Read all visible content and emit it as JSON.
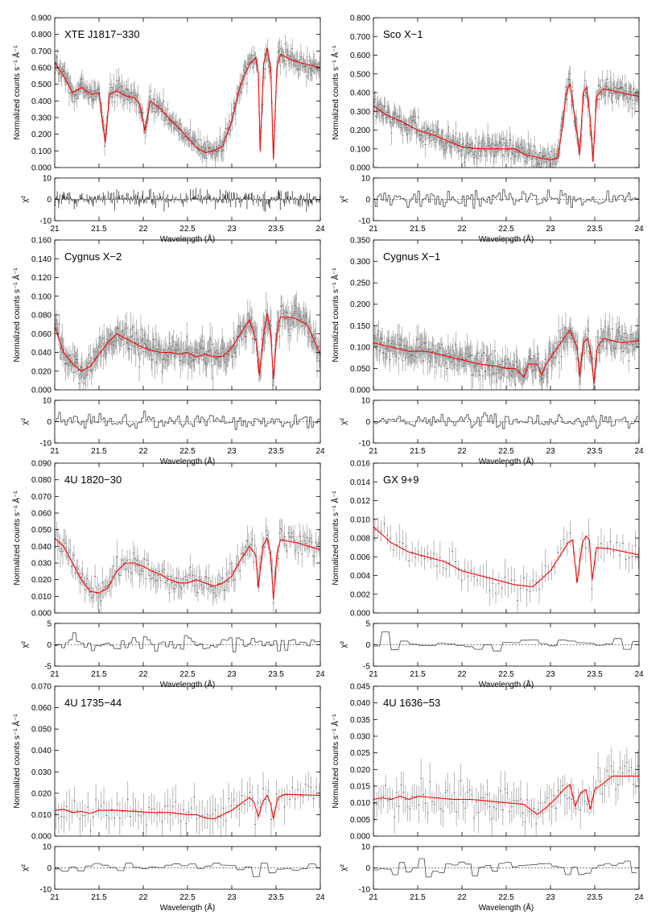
{
  "figure": {
    "y_label": "Normalized counts s⁻¹ Å⁻¹",
    "resid_label": "χ²",
    "x_label": "Wavelength (Å)",
    "colors": {
      "model": "#ff0000",
      "data": "#555555",
      "axis": "#000000",
      "error": "#9a9a9a"
    }
  },
  "chart_data": [
    {
      "type": "line",
      "title": "XTE J1817−330",
      "xlabel": "Wavelength (Å)",
      "ylabel": "Normalized counts s⁻¹ Å⁻¹",
      "xlim": [
        21,
        24
      ],
      "ylim": [
        0,
        0.9
      ],
      "y_ticks": [
        "0.000",
        "0.100",
        "0.200",
        "0.300",
        "0.400",
        "0.500",
        "0.600",
        "0.700",
        "0.800",
        "0.900"
      ],
      "x_ticks": [
        "21",
        "21.5",
        "22",
        "22.5",
        "23",
        "23.5",
        "24"
      ],
      "resid_ylim": [
        -10,
        10
      ],
      "resid_ticks": [
        "-10",
        "0",
        "10"
      ],
      "model": [
        [
          21.0,
          0.63
        ],
        [
          21.1,
          0.55
        ],
        [
          21.2,
          0.45
        ],
        [
          21.3,
          0.48
        ],
        [
          21.42,
          0.44
        ],
        [
          21.5,
          0.45
        ],
        [
          21.57,
          0.15
        ],
        [
          21.62,
          0.44
        ],
        [
          21.7,
          0.46
        ],
        [
          21.8,
          0.43
        ],
        [
          21.9,
          0.42
        ],
        [
          21.96,
          0.38
        ],
        [
          22.02,
          0.22
        ],
        [
          22.08,
          0.4
        ],
        [
          22.2,
          0.35
        ],
        [
          22.3,
          0.29
        ],
        [
          22.4,
          0.24
        ],
        [
          22.5,
          0.18
        ],
        [
          22.6,
          0.12
        ],
        [
          22.7,
          0.09
        ],
        [
          22.8,
          0.1
        ],
        [
          22.9,
          0.13
        ],
        [
          23.0,
          0.28
        ],
        [
          23.1,
          0.5
        ],
        [
          23.2,
          0.62
        ],
        [
          23.27,
          0.66
        ],
        [
          23.3,
          0.57
        ],
        [
          23.32,
          0.1
        ],
        [
          23.36,
          0.62
        ],
        [
          23.4,
          0.72
        ],
        [
          23.44,
          0.6
        ],
        [
          23.47,
          0.05
        ],
        [
          23.51,
          0.6
        ],
        [
          23.55,
          0.68
        ],
        [
          23.7,
          0.64
        ],
        [
          23.85,
          0.62
        ],
        [
          24.0,
          0.6
        ]
      ],
      "data_noise": 0.05,
      "data_step": 0.008,
      "resid_scale": 3.5,
      "resid_style": "lines"
    },
    {
      "type": "line",
      "title": "Sco X−1",
      "xlabel": "Wavelength (Å)",
      "ylabel": "Normalized counts s⁻¹ Å⁻¹",
      "xlim": [
        21,
        24
      ],
      "ylim": [
        0,
        0.8
      ],
      "y_ticks": [
        "0.000",
        "0.100",
        "0.200",
        "0.300",
        "0.400",
        "0.500",
        "0.600",
        "0.700",
        "0.800"
      ],
      "x_ticks": [
        "21",
        "21.5",
        "22",
        "22.5",
        "23",
        "23.5",
        "24"
      ],
      "resid_ylim": [
        -10,
        10
      ],
      "resid_ticks": [
        "-10",
        "0",
        "10"
      ],
      "model": [
        [
          21.0,
          0.33
        ],
        [
          21.15,
          0.28
        ],
        [
          21.3,
          0.25
        ],
        [
          21.5,
          0.2
        ],
        [
          21.7,
          0.17
        ],
        [
          21.9,
          0.13
        ],
        [
          22.0,
          0.11
        ],
        [
          22.2,
          0.1
        ],
        [
          22.4,
          0.1
        ],
        [
          22.6,
          0.1
        ],
        [
          22.7,
          0.07
        ],
        [
          22.8,
          0.06
        ],
        [
          22.9,
          0.05
        ],
        [
          23.0,
          0.04
        ],
        [
          23.08,
          0.05
        ],
        [
          23.13,
          0.2
        ],
        [
          23.18,
          0.4
        ],
        [
          23.22,
          0.45
        ],
        [
          23.28,
          0.25
        ],
        [
          23.33,
          0.07
        ],
        [
          23.37,
          0.4
        ],
        [
          23.41,
          0.43
        ],
        [
          23.45,
          0.25
        ],
        [
          23.48,
          0.03
        ],
        [
          23.52,
          0.38
        ],
        [
          23.6,
          0.42
        ],
        [
          23.8,
          0.4
        ],
        [
          24.0,
          0.38
        ]
      ],
      "data_noise": 0.045,
      "data_step": 0.008,
      "resid_scale": 3,
      "resid_style": "steps"
    },
    {
      "type": "line",
      "title": "Cygnus X−2",
      "xlabel": "Wavelength (Å)",
      "ylabel": "Normalized counts s⁻¹ Å⁻¹",
      "xlim": [
        21,
        24
      ],
      "ylim": [
        0,
        0.16
      ],
      "y_ticks": [
        "0.000",
        "0.020",
        "0.040",
        "0.060",
        "0.080",
        "0.100",
        "0.120",
        "0.140",
        "0.160"
      ],
      "x_ticks": [
        "21",
        "21.5",
        "22",
        "22.5",
        "23",
        "23.5",
        "24"
      ],
      "resid_ylim": [
        -10,
        10
      ],
      "resid_ticks": [
        "-10",
        "0",
        "10"
      ],
      "model": [
        [
          21.0,
          0.068
        ],
        [
          21.1,
          0.04
        ],
        [
          21.2,
          0.028
        ],
        [
          21.3,
          0.02
        ],
        [
          21.4,
          0.025
        ],
        [
          21.5,
          0.038
        ],
        [
          21.6,
          0.05
        ],
        [
          21.7,
          0.06
        ],
        [
          21.8,
          0.055
        ],
        [
          21.9,
          0.05
        ],
        [
          22.0,
          0.045
        ],
        [
          22.1,
          0.042
        ],
        [
          22.2,
          0.04
        ],
        [
          22.3,
          0.04
        ],
        [
          22.4,
          0.038
        ],
        [
          22.5,
          0.04
        ],
        [
          22.6,
          0.035
        ],
        [
          22.7,
          0.038
        ],
        [
          22.8,
          0.035
        ],
        [
          22.9,
          0.036
        ],
        [
          23.0,
          0.045
        ],
        [
          23.1,
          0.06
        ],
        [
          23.2,
          0.075
        ],
        [
          23.28,
          0.05
        ],
        [
          23.31,
          0.015
        ],
        [
          23.36,
          0.06
        ],
        [
          23.4,
          0.082
        ],
        [
          23.44,
          0.06
        ],
        [
          23.47,
          0.012
        ],
        [
          23.51,
          0.06
        ],
        [
          23.55,
          0.078
        ],
        [
          23.7,
          0.077
        ],
        [
          23.85,
          0.07
        ],
        [
          24.0,
          0.038
        ]
      ],
      "data_noise": 0.012,
      "data_step": 0.008,
      "resid_scale": 2.5,
      "resid_style": "steps"
    },
    {
      "type": "line",
      "title": "Cygnus X−1",
      "xlabel": "Wavelength (Å)",
      "ylabel": "Normalized counts s⁻¹ Å⁻¹",
      "xlim": [
        21,
        24
      ],
      "ylim": [
        0,
        0.35
      ],
      "y_ticks": [
        "0.000",
        "0.050",
        "0.100",
        "0.150",
        "0.200",
        "0.250",
        "0.300",
        "0.350"
      ],
      "x_ticks": [
        "21",
        "21.5",
        "22",
        "22.5",
        "23",
        "23.5",
        "24"
      ],
      "resid_ylim": [
        -10,
        10
      ],
      "resid_ticks": [
        "-10",
        "0",
        "10"
      ],
      "model": [
        [
          21.0,
          0.11
        ],
        [
          21.2,
          0.1
        ],
        [
          21.4,
          0.09
        ],
        [
          21.6,
          0.09
        ],
        [
          21.8,
          0.08
        ],
        [
          22.0,
          0.07
        ],
        [
          22.2,
          0.06
        ],
        [
          22.4,
          0.055
        ],
        [
          22.5,
          0.05
        ],
        [
          22.6,
          0.05
        ],
        [
          22.7,
          0.03
        ],
        [
          22.75,
          0.06
        ],
        [
          22.85,
          0.06
        ],
        [
          22.9,
          0.035
        ],
        [
          22.95,
          0.06
        ],
        [
          23.05,
          0.09
        ],
        [
          23.15,
          0.12
        ],
        [
          23.22,
          0.14
        ],
        [
          23.3,
          0.1
        ],
        [
          23.33,
          0.03
        ],
        [
          23.37,
          0.11
        ],
        [
          23.42,
          0.12
        ],
        [
          23.46,
          0.08
        ],
        [
          23.49,
          0.015
        ],
        [
          23.53,
          0.1
        ],
        [
          23.6,
          0.12
        ],
        [
          23.8,
          0.11
        ],
        [
          24.0,
          0.115
        ]
      ],
      "data_noise": 0.025,
      "data_step": 0.008,
      "resid_scale": 2.5,
      "resid_style": "steps"
    },
    {
      "type": "line",
      "title": "4U 1820−30",
      "xlabel": "Wavelength (Å)",
      "ylabel": "Normalized counts s⁻¹ Å⁻¹",
      "xlim": [
        21,
        24
      ],
      "ylim": [
        0,
        0.09
      ],
      "y_ticks": [
        "0.000",
        "0.010",
        "0.020",
        "0.030",
        "0.040",
        "0.050",
        "0.060",
        "0.070",
        "0.080",
        "0.090"
      ],
      "x_ticks": [
        "21",
        "21.5",
        "22",
        "22.5",
        "23",
        "23.5",
        "24"
      ],
      "resid_ylim": [
        -5,
        5
      ],
      "resid_ticks": [
        "-5",
        "0",
        "5"
      ],
      "model": [
        [
          21.0,
          0.045
        ],
        [
          21.1,
          0.04
        ],
        [
          21.2,
          0.03
        ],
        [
          21.3,
          0.02
        ],
        [
          21.4,
          0.013
        ],
        [
          21.5,
          0.012
        ],
        [
          21.6,
          0.015
        ],
        [
          21.7,
          0.025
        ],
        [
          21.8,
          0.03
        ],
        [
          21.9,
          0.03
        ],
        [
          22.0,
          0.028
        ],
        [
          22.1,
          0.025
        ],
        [
          22.2,
          0.023
        ],
        [
          22.3,
          0.02
        ],
        [
          22.4,
          0.018
        ],
        [
          22.5,
          0.018
        ],
        [
          22.6,
          0.02
        ],
        [
          22.7,
          0.018
        ],
        [
          22.8,
          0.016
        ],
        [
          22.9,
          0.018
        ],
        [
          23.0,
          0.022
        ],
        [
          23.1,
          0.032
        ],
        [
          23.2,
          0.04
        ],
        [
          23.27,
          0.035
        ],
        [
          23.3,
          0.015
        ],
        [
          23.35,
          0.04
        ],
        [
          23.4,
          0.045
        ],
        [
          23.44,
          0.035
        ],
        [
          23.47,
          0.008
        ],
        [
          23.51,
          0.035
        ],
        [
          23.55,
          0.044
        ],
        [
          23.75,
          0.042
        ],
        [
          24.0,
          0.038
        ]
      ],
      "data_noise": 0.006,
      "data_step": 0.014,
      "resid_scale": 1.6,
      "resid_style": "steps"
    },
    {
      "type": "line",
      "title": "GX 9+9",
      "xlabel": "Wavelength (Å)",
      "ylabel": "Normalized counts s⁻¹ Å⁻¹",
      "xlim": [
        21,
        24
      ],
      "ylim": [
        0,
        0.016
      ],
      "y_ticks": [
        "0.000",
        "0.002",
        "0.004",
        "0.006",
        "0.008",
        "0.010",
        "0.012",
        "0.014",
        "0.016"
      ],
      "x_ticks": [
        "21",
        "21.5",
        "22",
        "22.5",
        "23",
        "23.5",
        "24"
      ],
      "resid_ylim": [
        -5,
        5
      ],
      "resid_ticks": [
        "-5",
        "0",
        "5"
      ],
      "model": [
        [
          21.0,
          0.0092
        ],
        [
          21.2,
          0.0075
        ],
        [
          21.4,
          0.0065
        ],
        [
          21.6,
          0.006
        ],
        [
          21.8,
          0.0055
        ],
        [
          22.0,
          0.0045
        ],
        [
          22.2,
          0.004
        ],
        [
          22.4,
          0.0035
        ],
        [
          22.6,
          0.003
        ],
        [
          22.8,
          0.0028
        ],
        [
          23.0,
          0.0045
        ],
        [
          23.1,
          0.006
        ],
        [
          23.2,
          0.0075
        ],
        [
          23.25,
          0.0078
        ],
        [
          23.3,
          0.0032
        ],
        [
          23.36,
          0.0075
        ],
        [
          23.4,
          0.0082
        ],
        [
          23.44,
          0.0078
        ],
        [
          23.47,
          0.0035
        ],
        [
          23.52,
          0.007
        ],
        [
          23.7,
          0.0068
        ],
        [
          24.0,
          0.0062
        ]
      ],
      "data_noise": 0.0012,
      "data_step": 0.035,
      "resid_scale": 1.5,
      "resid_style": "steps"
    },
    {
      "type": "line",
      "title": "4U 1735−44",
      "xlabel": "Wavelength (Å)",
      "ylabel": "Normalized counts s⁻¹ Å⁻¹",
      "xlim": [
        21,
        24
      ],
      "ylim": [
        0,
        0.07
      ],
      "y_ticks": [
        "0.000",
        "0.010",
        "0.020",
        "0.030",
        "0.040",
        "0.050",
        "0.060",
        "0.070"
      ],
      "x_ticks": [
        "21",
        "21.5",
        "22",
        "22.5",
        "23",
        "23.5",
        "24"
      ],
      "resid_ylim": [
        -10,
        10
      ],
      "resid_ticks": [
        "-10",
        "0",
        "10"
      ],
      "model": [
        [
          21.0,
          0.012
        ],
        [
          21.1,
          0.0125
        ],
        [
          21.2,
          0.011
        ],
        [
          21.3,
          0.0115
        ],
        [
          21.4,
          0.0105
        ],
        [
          21.5,
          0.012
        ],
        [
          21.7,
          0.012
        ],
        [
          21.9,
          0.0115
        ],
        [
          22.1,
          0.011
        ],
        [
          22.3,
          0.011
        ],
        [
          22.5,
          0.01
        ],
        [
          22.6,
          0.01
        ],
        [
          22.7,
          0.0085
        ],
        [
          22.8,
          0.008
        ],
        [
          22.9,
          0.01
        ],
        [
          23.0,
          0.012
        ],
        [
          23.1,
          0.015
        ],
        [
          23.2,
          0.018
        ],
        [
          23.25,
          0.016
        ],
        [
          23.3,
          0.009
        ],
        [
          23.35,
          0.016
        ],
        [
          23.4,
          0.019
        ],
        [
          23.44,
          0.015
        ],
        [
          23.47,
          0.008
        ],
        [
          23.52,
          0.018
        ],
        [
          23.6,
          0.0195
        ],
        [
          24.0,
          0.019
        ]
      ],
      "data_noise": 0.006,
      "data_step": 0.03,
      "resid_scale": 2.5,
      "resid_style": "steps"
    },
    {
      "type": "line",
      "title": "4U 1636−53",
      "xlabel": "Wavelength (Å)",
      "ylabel": "Normalized counts s⁻¹ Å⁻¹",
      "xlim": [
        21,
        24
      ],
      "ylim": [
        0,
        0.045
      ],
      "y_ticks": [
        "0.000",
        "0.005",
        "0.010",
        "0.015",
        "0.020",
        "0.025",
        "0.030",
        "0.035",
        "0.040",
        "0.045"
      ],
      "x_ticks": [
        "21",
        "21.5",
        "22",
        "22.5",
        "23",
        "23.5",
        "24"
      ],
      "resid_ylim": [
        -10,
        10
      ],
      "resid_ticks": [
        "-10",
        "0",
        "10"
      ],
      "model": [
        [
          21.0,
          0.011
        ],
        [
          21.1,
          0.0115
        ],
        [
          21.2,
          0.011
        ],
        [
          21.3,
          0.012
        ],
        [
          21.4,
          0.011
        ],
        [
          21.5,
          0.012
        ],
        [
          21.7,
          0.0115
        ],
        [
          21.9,
          0.011
        ],
        [
          22.1,
          0.011
        ],
        [
          22.3,
          0.0105
        ],
        [
          22.5,
          0.01
        ],
        [
          22.6,
          0.0098
        ],
        [
          22.7,
          0.0095
        ],
        [
          22.75,
          0.0085
        ],
        [
          22.85,
          0.0065
        ],
        [
          22.95,
          0.0085
        ],
        [
          23.05,
          0.011
        ],
        [
          23.15,
          0.014
        ],
        [
          23.22,
          0.0155
        ],
        [
          23.28,
          0.009
        ],
        [
          23.34,
          0.013
        ],
        [
          23.4,
          0.014
        ],
        [
          23.45,
          0.008
        ],
        [
          23.5,
          0.014
        ],
        [
          23.58,
          0.0155
        ],
        [
          23.7,
          0.018
        ],
        [
          24.0,
          0.018
        ]
      ],
      "data_noise": 0.004,
      "data_step": 0.025,
      "resid_scale": 2.8,
      "resid_style": "steps"
    }
  ]
}
